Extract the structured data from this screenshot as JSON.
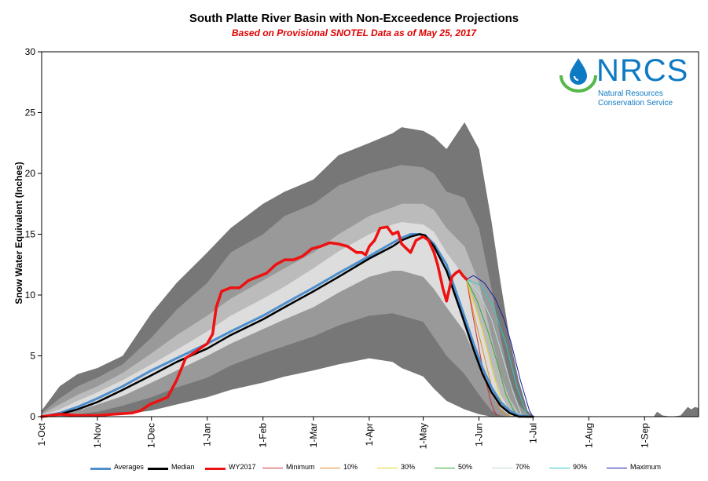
{
  "chart_data": {
    "type": "area",
    "title": "South Platte River Basin with Non-Exceedence Projections",
    "subtitle": "Based on Provisional SNOTEL Data as of May 25, 2017",
    "ylabel": "Snow Water Equivalent (Inches)",
    "xlabel": "",
    "ylim": [
      0,
      30
    ],
    "y_ticks": [
      "0",
      "5",
      "10",
      "15",
      "20",
      "25",
      "30"
    ],
    "x_ticks": [
      "1-Oct",
      "1-Nov",
      "1-Dec",
      "1-Jan",
      "1-Feb",
      "1-Mar",
      "1-Apr",
      "1-May",
      "1-Jun",
      "1-Jul",
      "1-Aug",
      "1-Sep"
    ],
    "x_tick_days": [
      0,
      31,
      61,
      92,
      123,
      151,
      182,
      212,
      243,
      273,
      304,
      335
    ],
    "x_range_days": [
      0,
      365
    ],
    "grid": false,
    "legend_position": "bottom",
    "percentile_bands": {
      "x_days": [
        0,
        10,
        20,
        31,
        45,
        61,
        75,
        92,
        105,
        123,
        135,
        151,
        165,
        182,
        195,
        200,
        212,
        218,
        225,
        235,
        243,
        250,
        255,
        260,
        265,
        270,
        273
      ],
      "max_upper": [
        0.5,
        2.5,
        3.5,
        4.0,
        5.0,
        8.5,
        11.0,
        13.5,
        15.5,
        17.5,
        18.5,
        19.5,
        21.5,
        22.5,
        23.3,
        23.8,
        23.5,
        23.0,
        22.0,
        24.2,
        22.0,
        16.0,
        11.0,
        6.5,
        3.0,
        0.5,
        0.0
      ],
      "p90_upper": [
        0.3,
        1.5,
        2.5,
        3.2,
        4.3,
        6.5,
        8.8,
        11.0,
        13.5,
        15.0,
        16.5,
        17.5,
        19.0,
        20.0,
        20.5,
        20.7,
        20.5,
        20.0,
        18.5,
        18.0,
        15.5,
        10.5,
        6.5,
        3.0,
        1.0,
        0.2,
        0.0
      ],
      "p70_upper": [
        0.2,
        1.0,
        1.8,
        2.5,
        3.6,
        5.2,
        6.7,
        8.3,
        9.7,
        11.2,
        12.2,
        13.5,
        15.0,
        16.5,
        17.2,
        17.5,
        17.5,
        17.0,
        15.5,
        14.0,
        11.0,
        6.5,
        3.5,
        1.5,
        0.3,
        0.0,
        0.0
      ],
      "p30_upper": [
        0.1,
        0.6,
        1.3,
        2.0,
        3.0,
        4.3,
        5.5,
        7.0,
        8.3,
        9.7,
        10.7,
        12.2,
        13.6,
        15.0,
        15.8,
        16.0,
        15.8,
        15.2,
        13.5,
        11.5,
        8.0,
        4.0,
        1.8,
        0.5,
        0.0,
        0.0,
        0.0
      ],
      "p30_lower": [
        0.0,
        0.2,
        0.5,
        1.0,
        1.7,
        2.8,
        3.8,
        5.0,
        6.0,
        7.2,
        8.0,
        9.0,
        10.2,
        11.5,
        12.0,
        12.0,
        11.5,
        10.5,
        9.0,
        7.0,
        4.2,
        1.8,
        0.7,
        0.1,
        0.0,
        0.0,
        0.0
      ],
      "p10_lower": [
        0.0,
        0.0,
        0.2,
        0.4,
        0.9,
        1.6,
        2.4,
        3.2,
        4.2,
        5.2,
        5.8,
        6.6,
        7.5,
        8.3,
        8.5,
        8.3,
        7.8,
        6.5,
        5.0,
        3.5,
        1.8,
        0.5,
        0.1,
        0.0,
        0.0,
        0.0,
        0.0
      ],
      "min_lower": [
        0.0,
        0.0,
        0.0,
        0.1,
        0.2,
        0.5,
        1.0,
        1.6,
        2.2,
        2.8,
        3.3,
        3.8,
        4.3,
        4.8,
        4.5,
        4.0,
        3.3,
        2.3,
        1.3,
        0.6,
        0.2,
        0.0,
        0.0,
        0.0,
        0.0,
        0.0,
        0.0
      ]
    },
    "late_season_max": {
      "x_days": [
        340,
        342,
        345,
        350,
        355,
        359,
        361,
        363,
        365
      ],
      "upper": [
        0.0,
        0.4,
        0.1,
        0.0,
        0.1,
        0.8,
        0.6,
        0.8,
        0.7
      ]
    },
    "series": [
      {
        "name": "Averages",
        "color": "#4f8fce",
        "x_days": [
          0,
          10,
          20,
          31,
          45,
          61,
          75,
          92,
          105,
          123,
          135,
          151,
          165,
          182,
          195,
          200,
          205,
          210,
          213,
          218,
          225,
          232,
          240,
          245,
          250,
          255,
          260,
          265,
          270,
          273
        ],
        "y": [
          0.0,
          0.3,
          0.8,
          1.5,
          2.5,
          3.8,
          4.8,
          6.0,
          7.0,
          8.3,
          9.3,
          10.6,
          11.8,
          13.2,
          14.3,
          14.7,
          15.0,
          15.0,
          14.9,
          14.2,
          12.5,
          9.5,
          6.0,
          4.0,
          2.4,
          1.2,
          0.5,
          0.1,
          0.0,
          0.0
        ]
      },
      {
        "name": "Median",
        "color": "#000000",
        "x_days": [
          0,
          10,
          20,
          31,
          45,
          61,
          75,
          92,
          105,
          123,
          135,
          151,
          165,
          182,
          195,
          200,
          205,
          210,
          213,
          218,
          225,
          232,
          240,
          245,
          250,
          255,
          260,
          265,
          270,
          273
        ],
        "y": [
          0.0,
          0.2,
          0.6,
          1.2,
          2.2,
          3.4,
          4.5,
          5.6,
          6.7,
          8.0,
          9.0,
          10.3,
          11.5,
          13.0,
          14.0,
          14.5,
          14.8,
          15.0,
          14.9,
          14.0,
          12.0,
          9.0,
          5.5,
          3.5,
          2.0,
          0.9,
          0.3,
          0.0,
          0.0,
          0.0
        ]
      },
      {
        "name": "WY2017",
        "color": "#ee1111",
        "x_days": [
          0,
          10,
          20,
          31,
          40,
          50,
          55,
          60,
          65,
          70,
          75,
          80,
          85,
          90,
          92,
          95,
          97,
          100,
          105,
          110,
          115,
          120,
          125,
          130,
          135,
          140,
          145,
          150,
          155,
          160,
          165,
          170,
          175,
          178,
          180,
          182,
          185,
          188,
          192,
          195,
          198,
          200,
          205,
          208,
          212,
          215,
          218,
          220,
          223,
          225,
          228,
          230,
          232,
          234,
          236
        ],
        "y": [
          0.0,
          0.2,
          0.1,
          0.1,
          0.2,
          0.3,
          0.5,
          1.0,
          1.3,
          1.6,
          3.0,
          4.8,
          5.3,
          5.8,
          6.0,
          6.8,
          9.0,
          10.3,
          10.6,
          10.6,
          11.2,
          11.5,
          11.8,
          12.5,
          12.9,
          12.9,
          13.2,
          13.8,
          14.0,
          14.3,
          14.2,
          14.0,
          13.5,
          13.5,
          13.3,
          14.0,
          14.5,
          15.5,
          15.6,
          15.0,
          15.2,
          14.2,
          13.5,
          14.5,
          14.8,
          14.5,
          13.5,
          12.5,
          10.5,
          9.5,
          11.5,
          11.8,
          12.0,
          11.6,
          11.3
        ]
      }
    ],
    "projections": [
      {
        "name": "Minimum",
        "color": "#cc3333",
        "x_days": [
          236,
          240,
          245,
          250,
          253
        ],
        "y": [
          11.3,
          8.0,
          4.0,
          1.0,
          0.0
        ]
      },
      {
        "name": "10%",
        "color": "#e38a2a",
        "x_days": [
          236,
          240,
          245,
          250,
          255,
          259
        ],
        "y": [
          11.3,
          8.5,
          5.5,
          2.5,
          0.5,
          0.0
        ]
      },
      {
        "name": "30%",
        "color": "#e3d82a",
        "x_days": [
          236,
          241,
          246,
          251,
          256,
          261
        ],
        "y": [
          11.3,
          9.0,
          6.5,
          3.5,
          1.0,
          0.0
        ]
      },
      {
        "name": "50%",
        "color": "#33aa33",
        "x_days": [
          236,
          242,
          248,
          253,
          258,
          264
        ],
        "y": [
          11.3,
          9.5,
          7.0,
          4.5,
          1.8,
          0.0
        ]
      },
      {
        "name": "70%",
        "color": "#b8ddd8",
        "x_days": [
          236,
          243,
          250,
          256,
          262,
          267
        ],
        "y": [
          11.3,
          10.2,
          8.0,
          5.0,
          2.0,
          0.0
        ]
      },
      {
        "name": "90%",
        "color": "#33c8c8",
        "x_days": [
          236,
          244,
          251,
          258,
          264,
          270
        ],
        "y": [
          11.3,
          10.8,
          9.0,
          6.0,
          2.5,
          0.0
        ]
      },
      {
        "name": "Maximum",
        "color": "#1a1aa8",
        "x_days": [
          236,
          240,
          246,
          252,
          257,
          261,
          266,
          271,
          273
        ],
        "y": [
          11.3,
          11.6,
          11.0,
          9.7,
          8.0,
          6.0,
          3.0,
          0.5,
          0.0
        ]
      }
    ],
    "legend": [
      {
        "label": "Averages",
        "color": "#4f8fce"
      },
      {
        "label": "Median",
        "color": "#000000"
      },
      {
        "label": "WY2017",
        "color": "#ee1111"
      },
      {
        "label": "Minimum",
        "color": "#cc3333"
      },
      {
        "label": "10%",
        "color": "#e38a2a"
      },
      {
        "label": "30%",
        "color": "#e3d82a"
      },
      {
        "label": "50%",
        "color": "#33aa33"
      },
      {
        "label": "70%",
        "color": "#b8ddd8"
      },
      {
        "label": "90%",
        "color": "#33c8c8"
      },
      {
        "label": "Maximum",
        "color": "#1a1aa8"
      }
    ]
  },
  "logo": {
    "text": "NRCS",
    "sub_line1": "Natural Resources",
    "sub_line2": "Conservation Service",
    "color": "#0e7ac4",
    "swoosh_color": "#55b948",
    "icon": "water-drop-icon"
  },
  "band_colors": {
    "outer": "#777777",
    "mid": "#999999",
    "inner": "#bbbbbb",
    "core": "#dddddd"
  }
}
